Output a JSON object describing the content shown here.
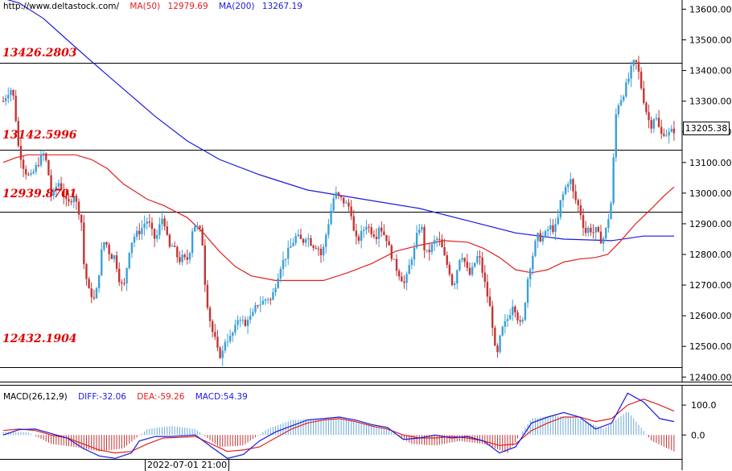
{
  "header": {
    "site": "http://www.deltastock.com/",
    "ma50_label": "MA(50)",
    "ma50_value": "12979.69",
    "ma200_label": "MA(200)",
    "ma200_value": "13267.19"
  },
  "macd_header": {
    "title": "MACD(26,12,9)",
    "diff": "DIFF:-32.06",
    "dea": "DEA:-59.26",
    "macd": "MACD:54.39"
  },
  "levels": [
    "13426.2803",
    "13142.5996",
    "12939.8701",
    "12432.1904"
  ],
  "current_price": "13205.38",
  "cursor_date": "2022-07-01 21:00",
  "colors": {
    "up": "#3aa0d8",
    "down": "#c23535",
    "ma50": "#e02020",
    "ma200": "#1a1add",
    "level_text": "#e00000"
  },
  "chart_data": {
    "type": "candlestick",
    "price_axis": {
      "ylim": [
        12385,
        13630
      ],
      "ticks": [
        12400,
        12500,
        12600,
        12700,
        12800,
        12900,
        13000,
        13100,
        13200,
        13300,
        13400,
        13500,
        13600
      ],
      "tick_labels": [
        "12400.00",
        "12500.00",
        "12600.00",
        "12700.00",
        "12800.00",
        "12900.00",
        "13000.00",
        "13100.00",
        "13200.00",
        "13300.00",
        "13400.00",
        "13500.00",
        "13600.00"
      ]
    },
    "horizontal_levels": [
      13426.2803,
      13142.5996,
      12939.8701,
      12432.1904
    ],
    "close_path": [
      [
        0,
        13300
      ],
      [
        6,
        13330
      ],
      [
        10,
        13340
      ],
      [
        14,
        13300
      ],
      [
        17,
        13200
      ],
      [
        19,
        13150
      ],
      [
        22,
        13120
      ],
      [
        26,
        13080
      ],
      [
        30,
        13060
      ],
      [
        34,
        13050
      ],
      [
        38,
        13070
      ],
      [
        42,
        13090
      ],
      [
        46,
        13110
      ],
      [
        50,
        13130
      ],
      [
        54,
        13100
      ],
      [
        58,
        13040
      ],
      [
        60,
        12990
      ],
      [
        64,
        13000
      ],
      [
        68,
        13040
      ],
      [
        72,
        13020
      ],
      [
        76,
        12990
      ],
      [
        80,
        12960
      ],
      [
        84,
        12975
      ],
      [
        88,
        13000
      ],
      [
        92,
        12960
      ],
      [
        96,
        12930
      ],
      [
        98,
        12900
      ],
      [
        101,
        12760
      ],
      [
        104,
        12720
      ],
      [
        107,
        12680
      ],
      [
        110,
        12670
      ],
      [
        114,
        12650
      ],
      [
        118,
        12700
      ],
      [
        122,
        12800
      ],
      [
        126,
        12840
      ],
      [
        130,
        12830
      ],
      [
        134,
        12790
      ],
      [
        138,
        12800
      ],
      [
        142,
        12760
      ],
      [
        145,
        12720
      ],
      [
        148,
        12700
      ],
      [
        152,
        12700
      ],
      [
        156,
        12800
      ],
      [
        160,
        12840
      ],
      [
        164,
        12860
      ],
      [
        168,
        12870
      ],
      [
        172,
        12880
      ],
      [
        176,
        12900
      ],
      [
        180,
        12910
      ],
      [
        184,
        12890
      ],
      [
        188,
        12850
      ],
      [
        192,
        12860
      ],
      [
        196,
        12900
      ],
      [
        200,
        12930
      ],
      [
        204,
        12860
      ],
      [
        208,
        12820
      ],
      [
        212,
        12830
      ],
      [
        216,
        12800
      ],
      [
        220,
        12780
      ],
      [
        224,
        12790
      ],
      [
        228,
        12780
      ],
      [
        232,
        12790
      ],
      [
        236,
        12880
      ],
      [
        240,
        12900
      ],
      [
        244,
        12880
      ],
      [
        248,
        12870
      ],
      [
        252,
        12710
      ],
      [
        255,
        12640
      ],
      [
        258,
        12590
      ],
      [
        261,
        12550
      ],
      [
        264,
        12530
      ],
      [
        267,
        12490
      ],
      [
        270,
        12470
      ],
      [
        274,
        12480
      ],
      [
        278,
        12530
      ],
      [
        282,
        12520
      ],
      [
        286,
        12540
      ],
      [
        290,
        12560
      ],
      [
        294,
        12600
      ],
      [
        298,
        12590
      ],
      [
        302,
        12560
      ],
      [
        306,
        12600
      ],
      [
        310,
        12590
      ],
      [
        314,
        12620
      ],
      [
        318,
        12640
      ],
      [
        322,
        12640
      ],
      [
        326,
        12650
      ],
      [
        330,
        12660
      ],
      [
        334,
        12650
      ],
      [
        338,
        12680
      ],
      [
        342,
        12720
      ],
      [
        346,
        12760
      ],
      [
        350,
        12780
      ],
      [
        354,
        12800
      ],
      [
        358,
        12820
      ],
      [
        362,
        12840
      ],
      [
        366,
        12860
      ],
      [
        370,
        12850
      ],
      [
        374,
        12840
      ],
      [
        378,
        12860
      ],
      [
        382,
        12850
      ],
      [
        386,
        12830
      ],
      [
        390,
        12830
      ],
      [
        394,
        12820
      ],
      [
        398,
        12790
      ],
      [
        402,
        12850
      ],
      [
        406,
        12900
      ],
      [
        410,
        12950
      ],
      [
        414,
        13000
      ],
      [
        418,
        12990
      ],
      [
        422,
        12980
      ],
      [
        426,
        12970
      ],
      [
        430,
        12960
      ],
      [
        434,
        12950
      ],
      [
        438,
        12870
      ],
      [
        442,
        12840
      ],
      [
        446,
        12860
      ],
      [
        450,
        12880
      ],
      [
        454,
        12900
      ],
      [
        458,
        12880
      ],
      [
        462,
        12870
      ],
      [
        466,
        12860
      ],
      [
        470,
        12900
      ],
      [
        474,
        12870
      ],
      [
        478,
        12860
      ],
      [
        482,
        12820
      ],
      [
        486,
        12790
      ],
      [
        490,
        12760
      ],
      [
        494,
        12740
      ],
      [
        498,
        12720
      ],
      [
        502,
        12700
      ],
      [
        506,
        12750
      ],
      [
        510,
        12790
      ],
      [
        514,
        12820
      ],
      [
        518,
        12880
      ],
      [
        522,
        12900
      ],
      [
        526,
        12820
      ],
      [
        530,
        12800
      ],
      [
        534,
        12820
      ],
      [
        538,
        12840
      ],
      [
        542,
        12850
      ],
      [
        546,
        12840
      ],
      [
        550,
        12800
      ],
      [
        554,
        12770
      ],
      [
        558,
        12740
      ],
      [
        562,
        12690
      ],
      [
        566,
        12740
      ],
      [
        570,
        12790
      ],
      [
        574,
        12800
      ],
      [
        578,
        12760
      ],
      [
        582,
        12730
      ],
      [
        586,
        12750
      ],
      [
        590,
        12780
      ],
      [
        594,
        12800
      ],
      [
        598,
        12750
      ],
      [
        602,
        12700
      ],
      [
        606,
        12650
      ],
      [
        610,
        12600
      ],
      [
        613,
        12520
      ],
      [
        616,
        12450
      ],
      [
        620,
        12520
      ],
      [
        624,
        12560
      ],
      [
        628,
        12580
      ],
      [
        632,
        12600
      ],
      [
        636,
        12640
      ],
      [
        640,
        12620
      ],
      [
        644,
        12580
      ],
      [
        648,
        12560
      ],
      [
        652,
        12650
      ],
      [
        656,
        12740
      ],
      [
        660,
        12780
      ],
      [
        664,
        12830
      ],
      [
        668,
        12860
      ],
      [
        672,
        12850
      ],
      [
        676,
        12860
      ],
      [
        680,
        12880
      ],
      [
        684,
        12890
      ],
      [
        688,
        12880
      ],
      [
        692,
        12900
      ],
      [
        696,
        12970
      ],
      [
        700,
        13000
      ],
      [
        704,
        13030
      ],
      [
        708,
        13050
      ],
      [
        712,
        13000
      ],
      [
        716,
        12970
      ],
      [
        720,
        12950
      ],
      [
        724,
        12900
      ],
      [
        728,
        12870
      ],
      [
        732,
        12890
      ],
      [
        736,
        12870
      ],
      [
        740,
        12880
      ],
      [
        744,
        12860
      ],
      [
        748,
        12840
      ],
      [
        752,
        12870
      ],
      [
        756,
        12920
      ],
      [
        760,
        12980
      ],
      [
        763,
        13150
      ],
      [
        766,
        13280
      ],
      [
        770,
        13300
      ],
      [
        774,
        13320
      ],
      [
        778,
        13350
      ],
      [
        782,
        13380
      ],
      [
        786,
        13420
      ],
      [
        790,
        13430
      ],
      [
        794,
        13390
      ],
      [
        798,
        13330
      ],
      [
        802,
        13280
      ],
      [
        806,
        13240
      ],
      [
        810,
        13220
      ],
      [
        814,
        13260
      ],
      [
        818,
        13220
      ],
      [
        822,
        13190
      ],
      [
        826,
        13200
      ],
      [
        830,
        13190
      ],
      [
        834,
        13200
      ],
      [
        838,
        13205
      ]
    ],
    "ma50_path": [
      [
        0,
        13100
      ],
      [
        15,
        13115
      ],
      [
        30,
        13125
      ],
      [
        60,
        13125
      ],
      [
        90,
        13125
      ],
      [
        110,
        13110
      ],
      [
        130,
        13080
      ],
      [
        150,
        13030
      ],
      [
        180,
        12980
      ],
      [
        200,
        12960
      ],
      [
        230,
        12920
      ],
      [
        250,
        12870
      ],
      [
        270,
        12810
      ],
      [
        290,
        12760
      ],
      [
        310,
        12730
      ],
      [
        340,
        12715
      ],
      [
        370,
        12715
      ],
      [
        400,
        12715
      ],
      [
        430,
        12740
      ],
      [
        460,
        12770
      ],
      [
        490,
        12810
      ],
      [
        520,
        12830
      ],
      [
        550,
        12845
      ],
      [
        580,
        12840
      ],
      [
        600,
        12820
      ],
      [
        620,
        12790
      ],
      [
        640,
        12750
      ],
      [
        660,
        12740
      ],
      [
        680,
        12750
      ],
      [
        700,
        12775
      ],
      [
        720,
        12785
      ],
      [
        740,
        12790
      ],
      [
        755,
        12800
      ],
      [
        770,
        12840
      ],
      [
        790,
        12900
      ],
      [
        810,
        12950
      ],
      [
        825,
        12990
      ],
      [
        838,
        13020
      ]
    ],
    "ma200_path": [
      [
        0,
        13635
      ],
      [
        20,
        13620
      ],
      [
        50,
        13570
      ],
      [
        80,
        13500
      ],
      [
        110,
        13430
      ],
      [
        150,
        13340
      ],
      [
        190,
        13250
      ],
      [
        230,
        13170
      ],
      [
        270,
        13110
      ],
      [
        320,
        13060
      ],
      [
        380,
        13010
      ],
      [
        450,
        12980
      ],
      [
        520,
        12950
      ],
      [
        580,
        12910
      ],
      [
        640,
        12870
      ],
      [
        700,
        12850
      ],
      [
        760,
        12845
      ],
      [
        800,
        12860
      ],
      [
        838,
        12860
      ]
    ],
    "macd_axis": {
      "ylim": [
        -80,
        165
      ],
      "ticks": [
        0,
        100
      ],
      "tick_labels": [
        "0.0",
        "100.0"
      ]
    },
    "diff_path": [
      [
        0,
        0
      ],
      [
        20,
        18
      ],
      [
        40,
        20
      ],
      [
        60,
        5
      ],
      [
        80,
        -10
      ],
      [
        100,
        -45
      ],
      [
        120,
        -70
      ],
      [
        140,
        -78
      ],
      [
        160,
        -60
      ],
      [
        170,
        -20
      ],
      [
        190,
        -5
      ],
      [
        210,
        -5
      ],
      [
        240,
        0
      ],
      [
        260,
        -40
      ],
      [
        280,
        -78
      ],
      [
        300,
        -65
      ],
      [
        320,
        -20
      ],
      [
        340,
        10
      ],
      [
        360,
        30
      ],
      [
        380,
        50
      ],
      [
        400,
        55
      ],
      [
        420,
        60
      ],
      [
        440,
        50
      ],
      [
        460,
        35
      ],
      [
        480,
        25
      ],
      [
        500,
        -15
      ],
      [
        520,
        -10
      ],
      [
        540,
        0
      ],
      [
        560,
        -10
      ],
      [
        580,
        -5
      ],
      [
        600,
        -20
      ],
      [
        620,
        -60
      ],
      [
        640,
        -40
      ],
      [
        660,
        40
      ],
      [
        680,
        60
      ],
      [
        700,
        75
      ],
      [
        720,
        60
      ],
      [
        740,
        20
      ],
      [
        760,
        40
      ],
      [
        780,
        140
      ],
      [
        800,
        110
      ],
      [
        820,
        55
      ],
      [
        838,
        45
      ]
    ],
    "dea_path": [
      [
        0,
        15
      ],
      [
        20,
        20
      ],
      [
        40,
        15
      ],
      [
        60,
        0
      ],
      [
        80,
        -10
      ],
      [
        100,
        -30
      ],
      [
        120,
        -50
      ],
      [
        140,
        -60
      ],
      [
        160,
        -55
      ],
      [
        180,
        -30
      ],
      [
        200,
        -10
      ],
      [
        220,
        -8
      ],
      [
        240,
        -5
      ],
      [
        260,
        -30
      ],
      [
        280,
        -55
      ],
      [
        300,
        -50
      ],
      [
        320,
        -40
      ],
      [
        340,
        -10
      ],
      [
        360,
        20
      ],
      [
        380,
        40
      ],
      [
        400,
        50
      ],
      [
        420,
        55
      ],
      [
        440,
        45
      ],
      [
        460,
        30
      ],
      [
        480,
        20
      ],
      [
        500,
        0
      ],
      [
        520,
        -10
      ],
      [
        540,
        -10
      ],
      [
        560,
        -5
      ],
      [
        580,
        -10
      ],
      [
        600,
        -20
      ],
      [
        620,
        -35
      ],
      [
        640,
        -30
      ],
      [
        660,
        15
      ],
      [
        680,
        40
      ],
      [
        700,
        60
      ],
      [
        720,
        60
      ],
      [
        740,
        45
      ],
      [
        760,
        55
      ],
      [
        780,
        100
      ],
      [
        800,
        120
      ],
      [
        820,
        100
      ],
      [
        838,
        80
      ]
    ],
    "macd_hist_summary": [
      [
        0,
        10
      ],
      [
        30,
        10
      ],
      [
        60,
        -30
      ],
      [
        90,
        -40
      ],
      [
        120,
        -55
      ],
      [
        150,
        -45
      ],
      [
        180,
        20
      ],
      [
        210,
        30
      ],
      [
        240,
        20
      ],
      [
        270,
        -40
      ],
      [
        300,
        -35
      ],
      [
        330,
        20
      ],
      [
        360,
        50
      ],
      [
        390,
        55
      ],
      [
        420,
        55
      ],
      [
        450,
        40
      ],
      [
        480,
        20
      ],
      [
        510,
        -30
      ],
      [
        540,
        -35
      ],
      [
        570,
        -20
      ],
      [
        600,
        -30
      ],
      [
        630,
        -60
      ],
      [
        660,
        55
      ],
      [
        690,
        65
      ],
      [
        720,
        55
      ],
      [
        750,
        20
      ],
      [
        780,
        80
      ],
      [
        810,
        -20
      ],
      [
        838,
        -55
      ]
    ]
  }
}
